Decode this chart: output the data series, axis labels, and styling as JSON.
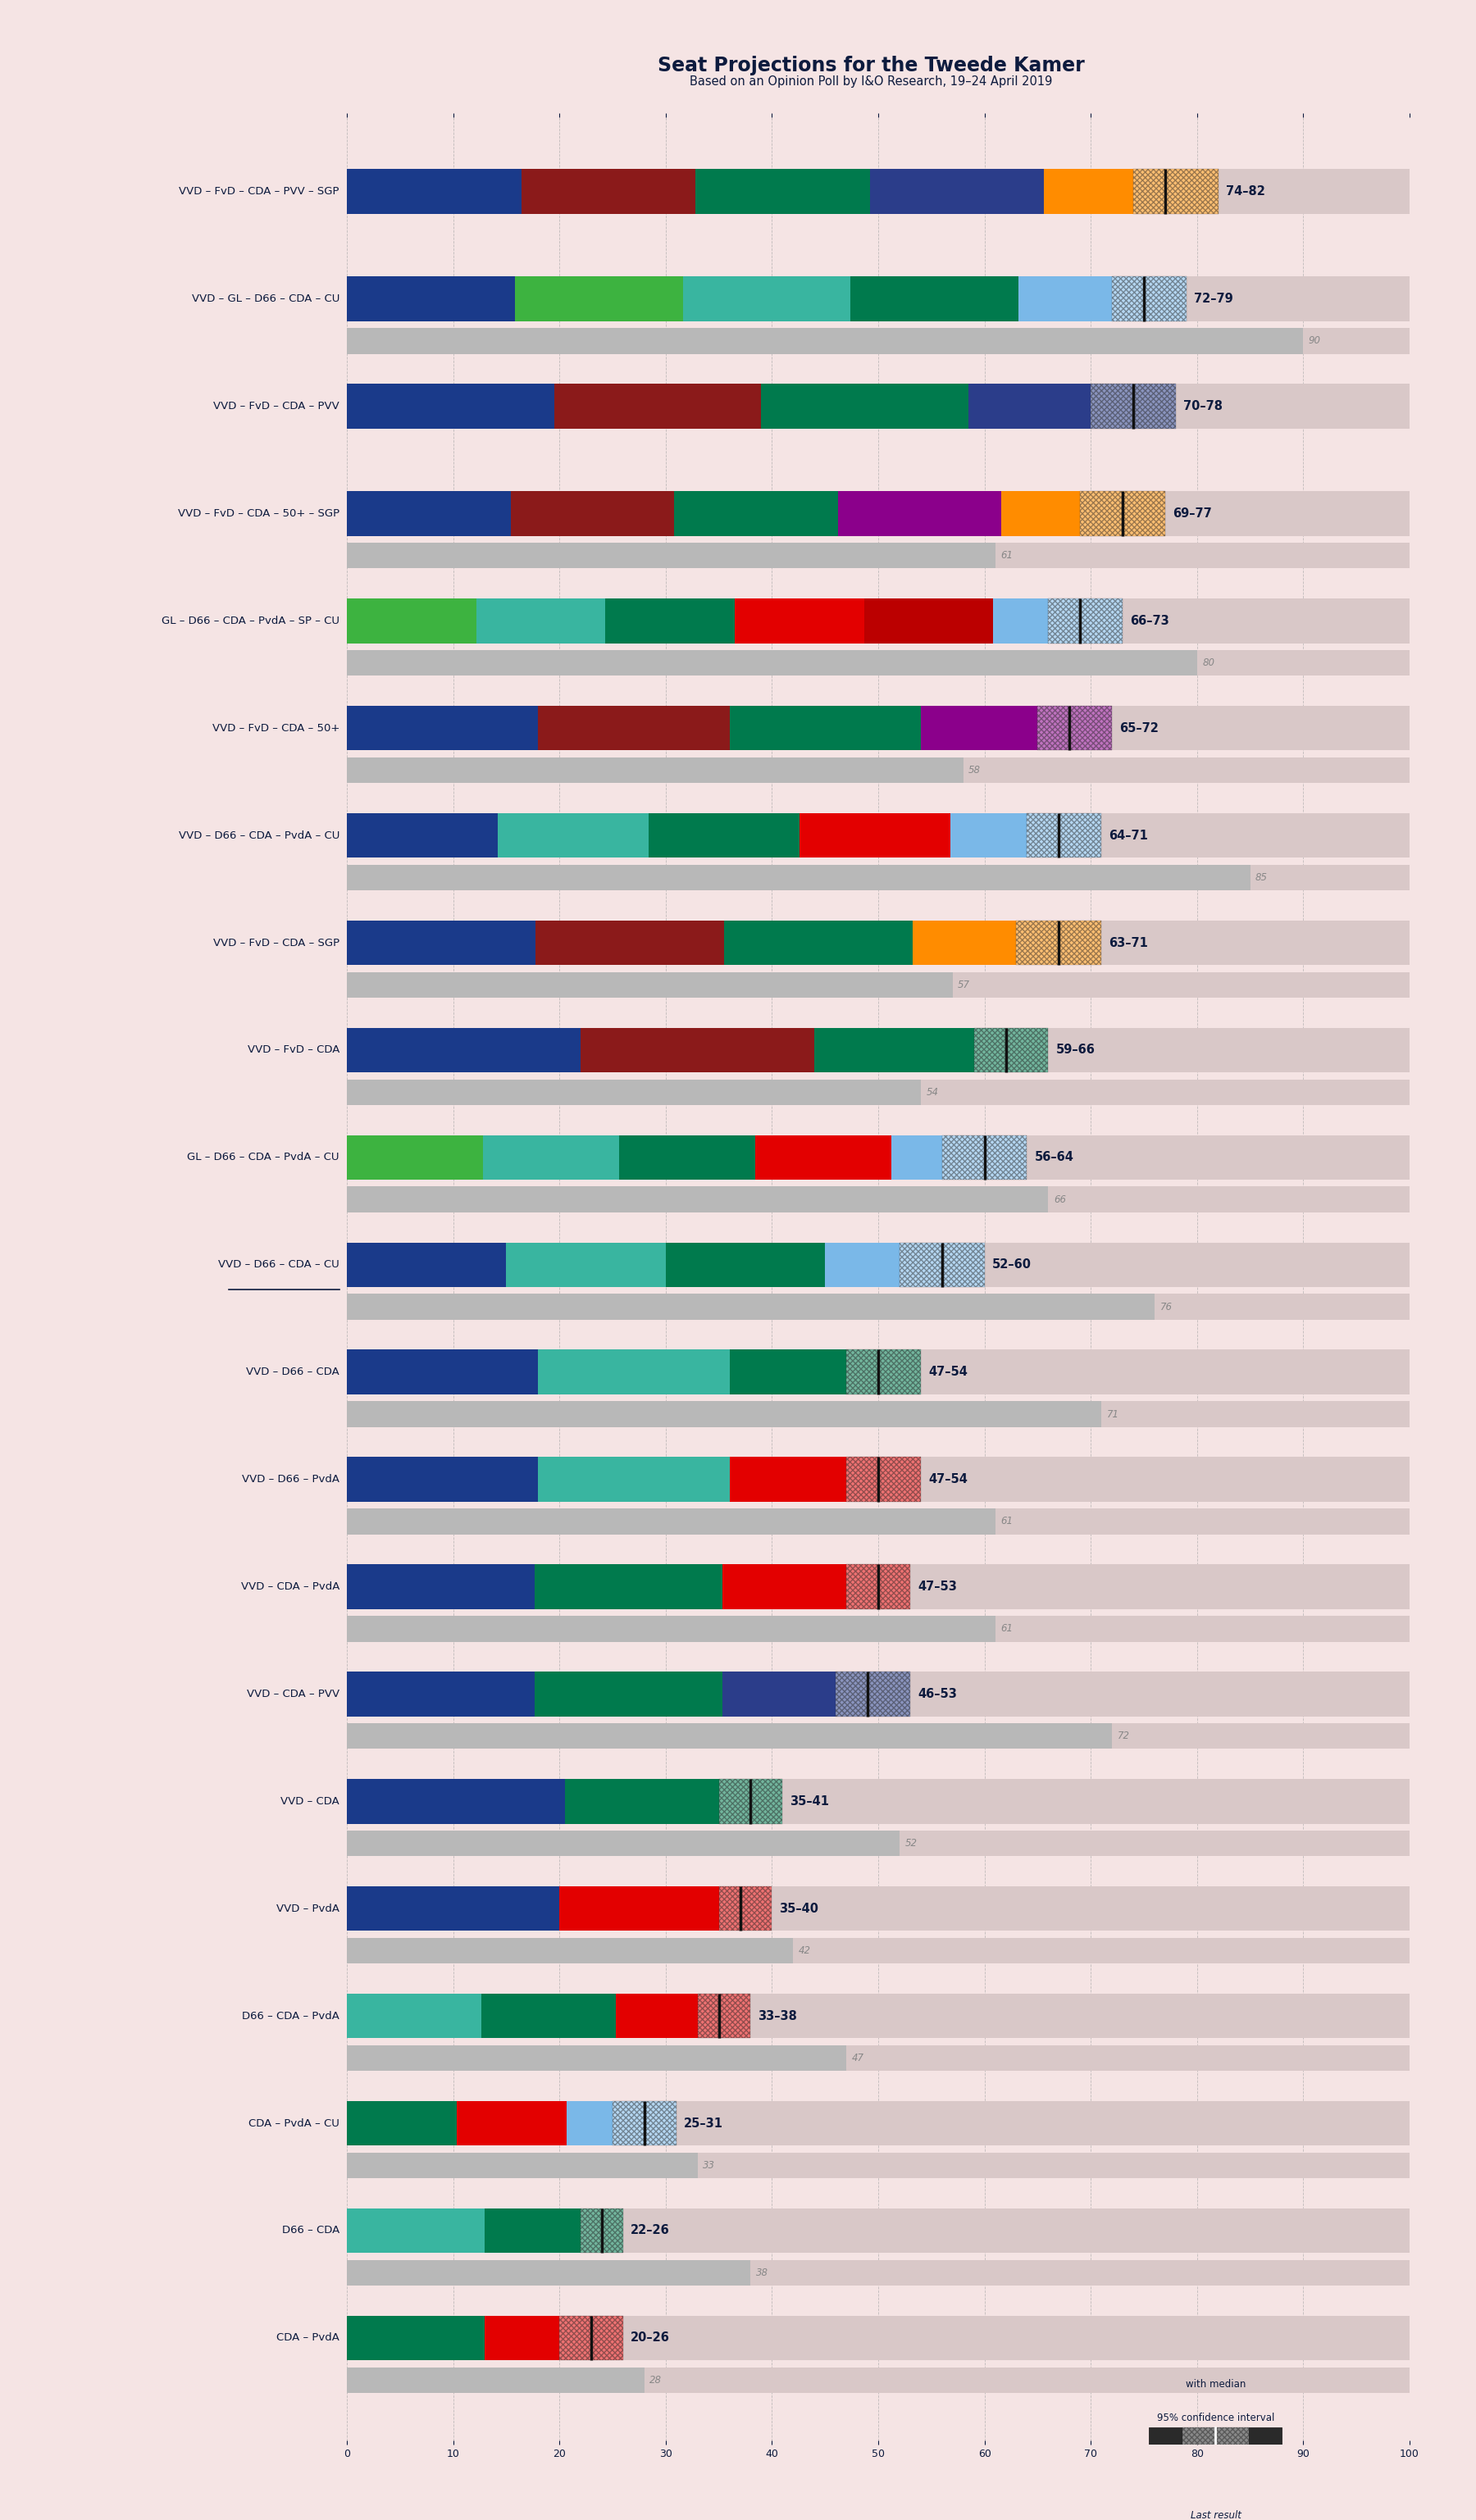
{
  "title": "Seat Projections for the Tweede Kamer",
  "subtitle": "Based on an Opinion Poll by I&O Research, 19–24 April 2019",
  "background_color": "#f5e4e4",
  "bar_bg_color": "#d9c8c8",
  "coalitions": [
    {
      "name": "VVD – FvD – CDA – PVV – SGP",
      "ci_low": 74,
      "ci_high": 82,
      "median": 77,
      "last": null,
      "underline": false
    },
    {
      "name": "VVD – GL – D66 – CDA – CU",
      "ci_low": 72,
      "ci_high": 79,
      "median": 75,
      "last": 90,
      "underline": false
    },
    {
      "name": "VVD – FvD – CDA – PVV",
      "ci_low": 70,
      "ci_high": 78,
      "median": 74,
      "last": null,
      "underline": false
    },
    {
      "name": "VVD – FvD – CDA – 50+ – SGP",
      "ci_low": 69,
      "ci_high": 77,
      "median": 73,
      "last": 61,
      "underline": false
    },
    {
      "name": "GL – D66 – CDA – PvdA – SP – CU",
      "ci_low": 66,
      "ci_high": 73,
      "median": 69,
      "last": 80,
      "underline": false
    },
    {
      "name": "VVD – FvD – CDA – 50+",
      "ci_low": 65,
      "ci_high": 72,
      "median": 68,
      "last": 58,
      "underline": false
    },
    {
      "name": "VVD – D66 – CDA – PvdA – CU",
      "ci_low": 64,
      "ci_high": 71,
      "median": 67,
      "last": 85,
      "underline": false
    },
    {
      "name": "VVD – FvD – CDA – SGP",
      "ci_low": 63,
      "ci_high": 71,
      "median": 67,
      "last": 57,
      "underline": false
    },
    {
      "name": "VVD – FvD – CDA",
      "ci_low": 59,
      "ci_high": 66,
      "median": 62,
      "last": 54,
      "underline": false
    },
    {
      "name": "GL – D66 – CDA – PvdA – CU",
      "ci_low": 56,
      "ci_high": 64,
      "median": 60,
      "last": 66,
      "underline": false
    },
    {
      "name": "VVD – D66 – CDA – CU",
      "ci_low": 52,
      "ci_high": 60,
      "median": 56,
      "last": 76,
      "underline": true
    },
    {
      "name": "VVD – D66 – CDA",
      "ci_low": 47,
      "ci_high": 54,
      "median": 50,
      "last": 71,
      "underline": false
    },
    {
      "name": "VVD – D66 – PvdA",
      "ci_low": 47,
      "ci_high": 54,
      "median": 50,
      "last": 61,
      "underline": false
    },
    {
      "name": "VVD – CDA – PvdA",
      "ci_low": 47,
      "ci_high": 53,
      "median": 50,
      "last": 61,
      "underline": false
    },
    {
      "name": "VVD – CDA – PVV",
      "ci_low": 46,
      "ci_high": 53,
      "median": 49,
      "last": 72,
      "underline": false
    },
    {
      "name": "VVD – CDA",
      "ci_low": 35,
      "ci_high": 41,
      "median": 38,
      "last": 52,
      "underline": false
    },
    {
      "name": "VVD – PvdA",
      "ci_low": 35,
      "ci_high": 40,
      "median": 37,
      "last": 42,
      "underline": false
    },
    {
      "name": "D66 – CDA – PvdA",
      "ci_low": 33,
      "ci_high": 38,
      "median": 35,
      "last": 47,
      "underline": false
    },
    {
      "name": "CDA – PvdA – CU",
      "ci_low": 25,
      "ci_high": 31,
      "median": 28,
      "last": 33,
      "underline": false
    },
    {
      "name": "D66 – CDA",
      "ci_low": 22,
      "ci_high": 26,
      "median": 24,
      "last": 38,
      "underline": false
    },
    {
      "name": "CDA – PvdA",
      "ci_low": 20,
      "ci_high": 26,
      "median": 23,
      "last": 28,
      "underline": false
    }
  ],
  "stripe_colors": {
    "VVD – FvD – CDA – PVV – SGP": [
      "#1A3A8A",
      "#8B1A1A",
      "#007A4D",
      "#2B3D8A",
      "#FF8C00"
    ],
    "VVD – GL – D66 – CDA – CU": [
      "#1A3A8A",
      "#3DB340",
      "#39B5A0",
      "#007A4D",
      "#7AB8E8"
    ],
    "VVD – FvD – CDA – PVV": [
      "#1A3A8A",
      "#8B1A1A",
      "#007A4D",
      "#2B3D8A"
    ],
    "VVD – FvD – CDA – 50+ – SGP": [
      "#1A3A8A",
      "#8B1A1A",
      "#007A4D",
      "#8B008B",
      "#FF8C00"
    ],
    "GL – D66 – CDA – PvdA – SP – CU": [
      "#3DB340",
      "#39B5A0",
      "#007A4D",
      "#E30000",
      "#BB0000",
      "#7AB8E8"
    ],
    "VVD – FvD – CDA – 50+": [
      "#1A3A8A",
      "#8B1A1A",
      "#007A4D",
      "#8B008B"
    ],
    "VVD – D66 – CDA – PvdA – CU": [
      "#1A3A8A",
      "#39B5A0",
      "#007A4D",
      "#E30000",
      "#7AB8E8"
    ],
    "VVD – FvD – CDA – SGP": [
      "#1A3A8A",
      "#8B1A1A",
      "#007A4D",
      "#FF8C00"
    ],
    "VVD – FvD – CDA": [
      "#1A3A8A",
      "#8B1A1A",
      "#007A4D"
    ],
    "GL – D66 – CDA – PvdA – CU": [
      "#3DB340",
      "#39B5A0",
      "#007A4D",
      "#E30000",
      "#7AB8E8"
    ],
    "VVD – D66 – CDA – CU": [
      "#1A3A8A",
      "#39B5A0",
      "#007A4D",
      "#7AB8E8"
    ],
    "VVD – D66 – CDA": [
      "#1A3A8A",
      "#39B5A0",
      "#007A4D"
    ],
    "VVD – D66 – PvdA": [
      "#1A3A8A",
      "#39B5A0",
      "#E30000"
    ],
    "VVD – CDA – PvdA": [
      "#1A3A8A",
      "#007A4D",
      "#E30000"
    ],
    "VVD – CDA – PVV": [
      "#1A3A8A",
      "#007A4D",
      "#2B3D8A"
    ],
    "VVD – CDA": [
      "#1A3A8A",
      "#007A4D"
    ],
    "VVD – PvdA": [
      "#1A3A8A",
      "#E30000"
    ],
    "D66 – CDA – PvdA": [
      "#39B5A0",
      "#007A4D",
      "#E30000"
    ],
    "CDA – PvdA – CU": [
      "#007A4D",
      "#E30000",
      "#7AB8E8"
    ],
    "D66 – CDA": [
      "#39B5A0",
      "#007A4D"
    ],
    "CDA – PvdA": [
      "#007A4D",
      "#E30000"
    ]
  },
  "xmax": 100,
  "majority_line": 76,
  "text_color": "#0D1B3E",
  "italic_color": "#888888"
}
